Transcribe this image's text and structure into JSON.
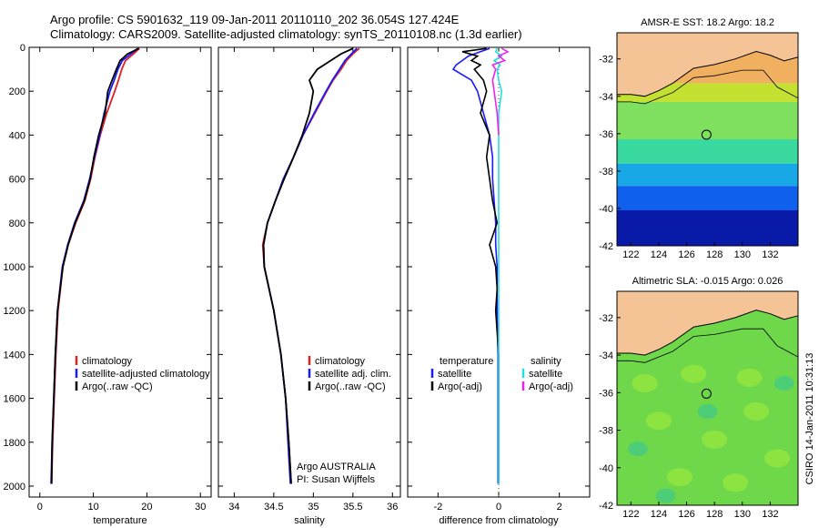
{
  "header": {
    "line1": "Argo profile: CS 5901632_119 09-Jan-2011 20110110_202 36.054S 127.424E",
    "line2": "Climatology: CARS2009. Satellite-adjusted climatology: synTS_20110108.nc (1.3d earlier)"
  },
  "colors": {
    "climatology": "#dd2222",
    "satellite": "#1a1aff",
    "argo": "#000000",
    "sal_satellite": "#22e0e0",
    "sal_argo": "#ee22ee",
    "land": "#f5c496"
  },
  "chart_data": [
    {
      "type": "line",
      "xlabel": "temperature",
      "ylabel": "",
      "xlim": [
        -2,
        32
      ],
      "ylim": [
        2050,
        0
      ],
      "xticks": [
        "0",
        "10",
        "20",
        "30"
      ],
      "yticks": [
        "0",
        "200",
        "400",
        "600",
        "800",
        "1000",
        "1200",
        "1400",
        "1600",
        "1800",
        "2000"
      ],
      "legend": [
        "climatology",
        "satellite-adjusted climatology",
        "Argo(..raw -QC)"
      ],
      "series": [
        {
          "name": "climatology",
          "color_key": "climatology",
          "depth": [
            5,
            30,
            60,
            100,
            150,
            200,
            300,
            400,
            500,
            600,
            700,
            800,
            900,
            1000,
            1200,
            1400,
            1600,
            1800,
            1990
          ],
          "values": [
            18.6,
            17.5,
            16.0,
            15.3,
            14.7,
            14.0,
            12.5,
            11.3,
            10.3,
            9.5,
            8.4,
            6.7,
            5.3,
            4.3,
            3.4,
            3.0,
            2.7,
            2.4,
            2.2
          ]
        },
        {
          "name": "satellite-adjusted climatology",
          "color_key": "satellite",
          "depth": [
            5,
            30,
            60,
            100,
            150,
            200,
            300,
            400,
            500,
            600,
            700,
            800,
            900,
            1000,
            1200,
            1400,
            1600,
            1800,
            1990
          ],
          "values": [
            18.3,
            17.0,
            15.4,
            14.6,
            13.9,
            13.1,
            12.0,
            11.2,
            10.2,
            9.3,
            8.2,
            6.5,
            5.2,
            4.2,
            3.3,
            2.9,
            2.6,
            2.3,
            2.1
          ]
        },
        {
          "name": "Argo(..raw -QC)",
          "color_key": "argo",
          "depth": [
            5,
            30,
            60,
            100,
            150,
            200,
            300,
            400,
            500,
            600,
            700,
            800,
            900,
            1000,
            1200,
            1400,
            1600,
            1800,
            1990
          ],
          "values": [
            18.5,
            16.4,
            15.0,
            14.3,
            13.5,
            12.7,
            12.2,
            11.0,
            10.1,
            9.4,
            8.3,
            6.6,
            5.3,
            4.3,
            3.3,
            2.9,
            2.6,
            2.3,
            2.2
          ]
        }
      ]
    },
    {
      "type": "line",
      "xlabel": "salinity",
      "ylabel": "",
      "xlim": [
        33.8,
        36.1
      ],
      "ylim": [
        2050,
        0
      ],
      "xticks": [
        "34",
        "34.5",
        "35",
        "35.5",
        "36"
      ],
      "legend": [
        "climatology",
        "satellite adj. clim.",
        "Argo(..raw -QC)"
      ],
      "annotation": [
        "Argo AUSTRALIA",
        "PI: Susan Wijffels"
      ],
      "series": [
        {
          "name": "climatology",
          "color_key": "climatology",
          "depth": [
            5,
            30,
            60,
            100,
            150,
            200,
            300,
            400,
            500,
            600,
            700,
            800,
            900,
            1000,
            1200,
            1400,
            1600,
            1800,
            1990
          ],
          "values": [
            35.58,
            35.5,
            35.42,
            35.35,
            35.25,
            35.17,
            35.02,
            34.87,
            34.75,
            34.63,
            34.52,
            34.42,
            34.36,
            34.38,
            34.5,
            34.59,
            34.65,
            34.69,
            34.72
          ]
        },
        {
          "name": "satellite adj. clim.",
          "color_key": "satellite",
          "depth": [
            5,
            30,
            60,
            100,
            150,
            200,
            300,
            400,
            500,
            600,
            700,
            800,
            900,
            1000,
            1200,
            1400,
            1600,
            1800,
            1990
          ],
          "values": [
            35.55,
            35.48,
            35.4,
            35.33,
            35.24,
            35.16,
            35.01,
            34.87,
            34.75,
            34.62,
            34.52,
            34.42,
            34.37,
            34.38,
            34.5,
            34.59,
            34.65,
            34.68,
            34.71
          ]
        },
        {
          "name": "Argo(..raw -QC)",
          "color_key": "argo",
          "depth": [
            5,
            30,
            60,
            100,
            150,
            200,
            300,
            400,
            500,
            600,
            700,
            800,
            900,
            1000,
            1200,
            1400,
            1600,
            1800,
            1990
          ],
          "values": [
            35.5,
            35.35,
            35.22,
            35.05,
            34.95,
            35.0,
            34.95,
            34.86,
            34.75,
            34.63,
            34.52,
            34.42,
            34.37,
            34.38,
            34.5,
            34.59,
            34.65,
            34.69,
            34.72
          ]
        }
      ]
    },
    {
      "type": "line",
      "xlabel": "difference from climatology",
      "ylabel": "",
      "xlim": [
        -3,
        3
      ],
      "ylim": [
        2050,
        0
      ],
      "xticks": [
        "-2",
        "0",
        "2"
      ],
      "legend_groups": [
        {
          "title": "temperature",
          "items": [
            "satellite",
            "Argo(-adj)"
          ]
        },
        {
          "title": "salinity",
          "items": [
            "satellite",
            "Argo(-adj)"
          ]
        }
      ],
      "series": [
        {
          "name": "temperature satellite",
          "color_key": "satellite",
          "depth": [
            5,
            20,
            40,
            60,
            80,
            100,
            150,
            200,
            300,
            400,
            500,
            600,
            700,
            800,
            900,
            1000,
            1100,
            1200,
            1400,
            1600,
            1800,
            1990
          ],
          "values": [
            -0.3,
            -0.6,
            -1.0,
            -1.2,
            -1.4,
            -1.5,
            -0.9,
            -0.7,
            -0.5,
            -0.3,
            -0.2,
            -0.2,
            -0.15,
            -0.1,
            -0.1,
            -0.05,
            -0.05,
            -0.05,
            -0.02,
            -0.02,
            -0.02,
            -0.02
          ]
        },
        {
          "name": "temperature Argo(-adj)",
          "color_key": "argo",
          "depth": [
            5,
            20,
            40,
            60,
            80,
            100,
            150,
            200,
            300,
            400,
            500,
            600,
            700,
            800,
            900,
            1000,
            1100,
            1200,
            1400,
            1600,
            1800,
            1990
          ],
          "values": [
            -0.4,
            -1.2,
            -0.7,
            -0.9,
            -0.6,
            -0.8,
            -0.5,
            -0.4,
            -0.6,
            -0.3,
            -0.4,
            -0.3,
            -0.2,
            -0.05,
            -0.3,
            -0.1,
            -0.05,
            -0.1,
            0.0,
            0.0,
            0.0,
            0.0
          ]
        },
        {
          "name": "salinity satellite",
          "color_key": "sal_satellite",
          "depth": [
            5,
            20,
            40,
            60,
            80,
            100,
            150,
            200,
            300,
            400,
            500,
            600,
            800,
            1000,
            1200,
            1400,
            1600,
            1800,
            1990
          ],
          "values": [
            -0.05,
            -0.1,
            0.1,
            -0.15,
            0.05,
            -0.05,
            0.0,
            0.1,
            0.0,
            0.0,
            0.0,
            0.0,
            0.0,
            0.0,
            0.0,
            0.0,
            0.0,
            0.0,
            0.0
          ]
        },
        {
          "name": "salinity Argo(-adj)",
          "color_key": "sal_argo",
          "depth": [
            5,
            20,
            40,
            60,
            80,
            100,
            150,
            200,
            300,
            400
          ],
          "values": [
            0.1,
            0.3,
            0.0,
            0.2,
            -0.2,
            -0.1,
            -0.2,
            -0.15,
            -0.05,
            0.0
          ]
        }
      ]
    },
    {
      "type": "heatmap",
      "title": "AMSR-E SST: 18.2 Argo: 18.2",
      "xlim": [
        121,
        134
      ],
      "ylim": [
        -42,
        -30.6
      ],
      "xticks": [
        "122",
        "124",
        "126",
        "128",
        "130",
        "132"
      ],
      "yticks": [
        "-32",
        "-34",
        "-36",
        "-38",
        "-40",
        "-42"
      ],
      "marker": {
        "lon": 127.424,
        "lat": -36.054
      },
      "bands": [
        {
          "from": -30.6,
          "to": -33.3,
          "color": "#f0b060"
        },
        {
          "from": -33.3,
          "to": -34.3,
          "color": "#c4e030"
        },
        {
          "from": -34.3,
          "to": -36.3,
          "color": "#7fe060"
        },
        {
          "from": -36.3,
          "to": -37.6,
          "color": "#3ad9a0"
        },
        {
          "from": -37.6,
          "to": -38.8,
          "color": "#18a8e8"
        },
        {
          "from": -38.8,
          "to": -40.1,
          "color": "#1060ee"
        },
        {
          "from": -40.1,
          "to": -42.0,
          "color": "#0a1aa8"
        }
      ]
    },
    {
      "type": "heatmap",
      "title": "Altimetric SLA: -0.015 Argo: 0.026",
      "xlim": [
        121,
        134
      ],
      "ylim": [
        -42,
        -30.6
      ],
      "xticks": [
        "122",
        "124",
        "126",
        "128",
        "130",
        "132"
      ],
      "yticks": [
        "-32",
        "-34",
        "-36",
        "-38",
        "-40",
        "-42"
      ],
      "marker": {
        "lon": 127.424,
        "lat": -36.054
      },
      "bands": [
        {
          "from": -30.6,
          "to": -42.0,
          "color": "#6fd84a"
        }
      ]
    }
  ],
  "footer": {
    "side_label": "CSIRO 14-Jan-2011 10:31:13"
  }
}
